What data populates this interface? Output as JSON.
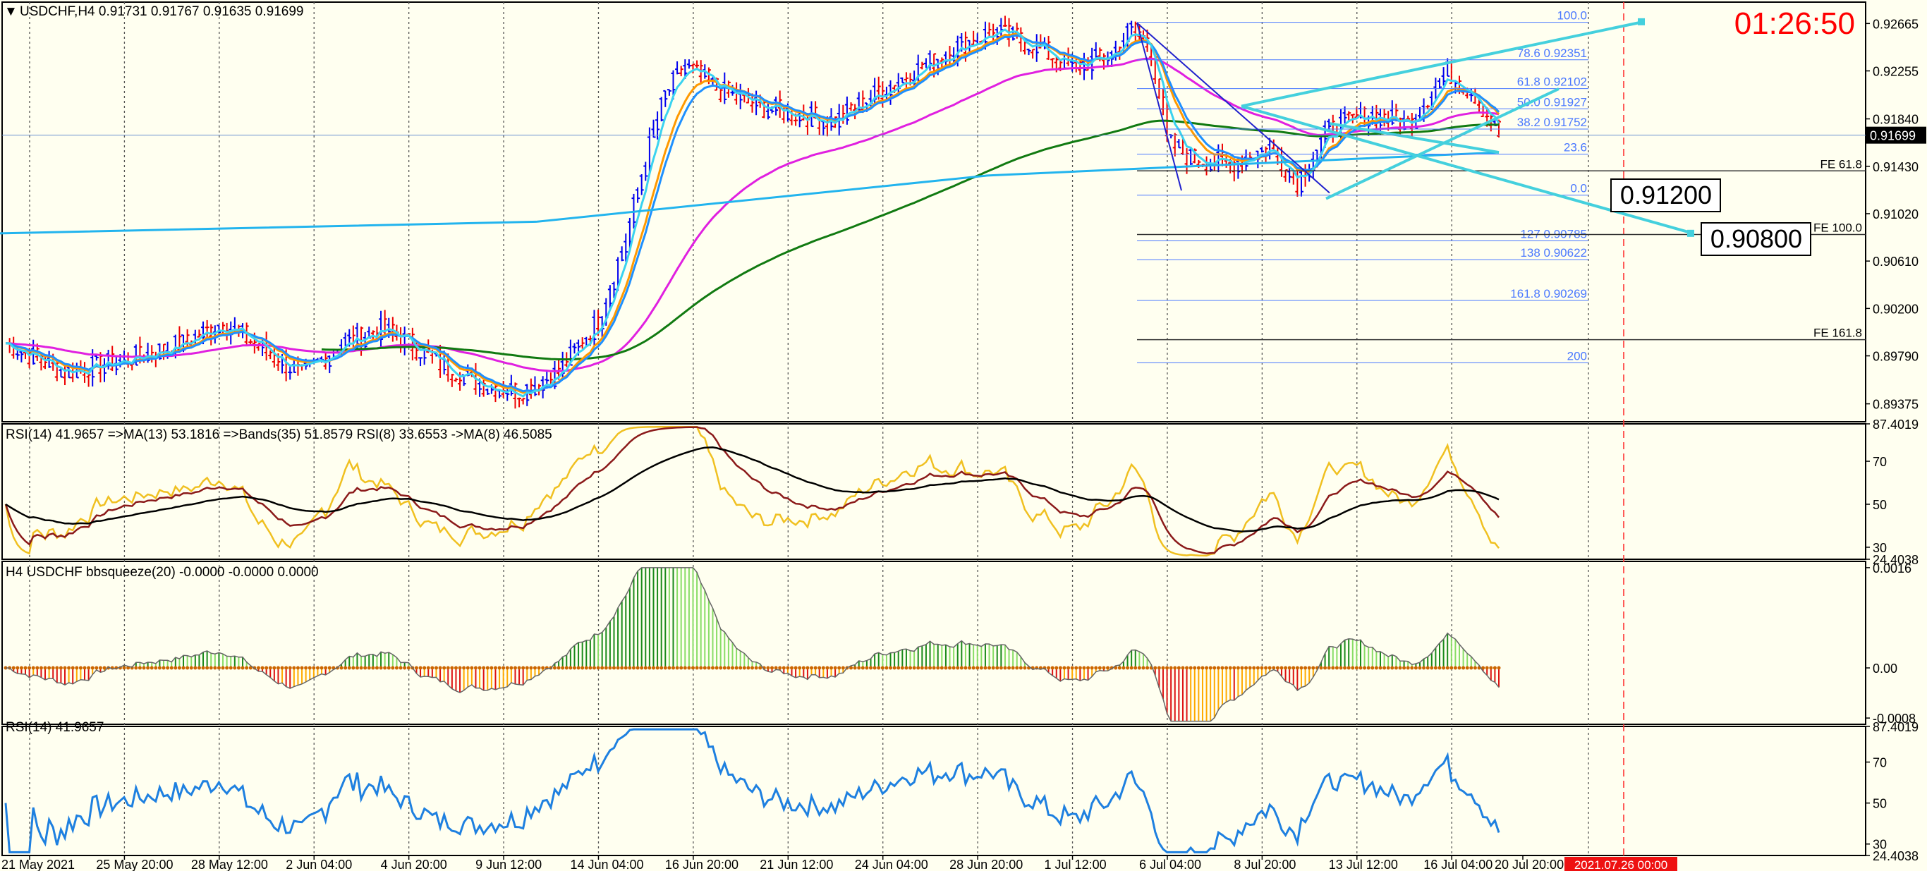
{
  "header": {
    "symbol_line": "USDCHF,H4  0.91731 0.91767 0.91635 0.91699",
    "timer": "01:26:50",
    "current_price": "0.91699"
  },
  "colors": {
    "background": "#fffff0",
    "bull": "#0000ee",
    "bear": "#ee0000",
    "ma_fast": "#3ad3f0",
    "ma_mid": "#ff9900",
    "ma_slow_blue": "#1e90ff",
    "ma_long_green": "#117a11",
    "ma_pink": "#e020e0",
    "ma_cyan_long": "#22b4ee",
    "channel": "#44d0dd",
    "fib": "#4a78ff"
  },
  "chart_data": [
    {
      "type": "candlestick",
      "panel": "price",
      "price_axis": [
        "0.92665",
        "0.92255",
        "0.91840",
        "0.91430",
        "0.91020",
        "0.90610",
        "0.90200",
        "0.89790",
        "0.89375"
      ],
      "price_range": [
        0.8922,
        0.9285
      ],
      "x_labels": [
        "21 May 2021",
        "25 May 20:00",
        "28 May 12:00",
        "2 Jun 04:00",
        "4 Jun 20:00",
        "9 Jun 12:00",
        "14 Jun 04:00",
        "16 Jun 20:00",
        "21 Jun 12:00",
        "24 Jun 04:00",
        "28 Jun 20:00",
        "1 Jul 12:00",
        "6 Jul 04:00",
        "8 Jul 20:00",
        "13 Jul 12:00",
        "16 Jul 04:00",
        "20 Jul 20:00"
      ],
      "future_marker_label": "2021.07.26 00:00",
      "close_path": [
        [
          0,
          0.899
        ],
        [
          15,
          0.8965
        ],
        [
          30,
          0.8975
        ],
        [
          45,
          0.899
        ],
        [
          55,
          0.9008
        ],
        [
          65,
          0.8985
        ],
        [
          75,
          0.8962
        ],
        [
          85,
          0.899
        ],
        [
          95,
          0.9002
        ],
        [
          100,
          0.8995
        ],
        [
          110,
          0.8972
        ],
        [
          120,
          0.8955
        ],
        [
          130,
          0.8948
        ],
        [
          140,
          0.8965
        ],
        [
          150,
          0.901
        ],
        [
          157,
          0.908
        ],
        [
          162,
          0.915
        ],
        [
          167,
          0.9205
        ],
        [
          172,
          0.923
        ],
        [
          180,
          0.921
        ],
        [
          190,
          0.9195
        ],
        [
          200,
          0.9188
        ],
        [
          210,
          0.9182
        ],
        [
          220,
          0.9205
        ],
        [
          230,
          0.9225
        ],
        [
          240,
          0.9245
        ],
        [
          250,
          0.926
        ],
        [
          260,
          0.9248
        ],
        [
          270,
          0.9228
        ],
        [
          280,
          0.924
        ],
        [
          285,
          0.9262
        ],
        [
          290,
          0.9245
        ],
        [
          294,
          0.9165
        ],
        [
          300,
          0.915
        ],
        [
          310,
          0.9145
        ],
        [
          320,
          0.916
        ],
        [
          327,
          0.913
        ],
        [
          335,
          0.9175
        ],
        [
          345,
          0.9188
        ],
        [
          355,
          0.918
        ],
        [
          365,
          0.9225
        ],
        [
          372,
          0.9205
        ],
        [
          378,
          0.917
        ]
      ],
      "fib_retracement": [
        {
          "level": "100.0",
          "price": 0.92675
        },
        {
          "level": "78.6",
          "price": 0.92351
        },
        {
          "level": "61.8",
          "price": 0.92102
        },
        {
          "level": "50.0",
          "price": 0.91927
        },
        {
          "level": "38.2",
          "price": 0.91752
        },
        {
          "level": "23.6",
          "price": 0.91535
        },
        {
          "level": "0.0",
          "price": 0.9118
        }
      ],
      "fib_extension": [
        {
          "level": "127",
          "price": 0.90785
        },
        {
          "level": "138",
          "price": 0.90622
        },
        {
          "level": "161.8",
          "price": 0.90269
        },
        {
          "level": "200",
          "price": 0.8973
        }
      ],
      "fe_levels": [
        {
          "label": "FE 61.8",
          "price": 0.9139
        },
        {
          "label": "FE 100.0",
          "price": 0.9084
        },
        {
          "label": "FE 161.8",
          "price": 0.8993
        }
      ],
      "price_boxes": [
        "0.91200",
        "0.90800"
      ]
    },
    {
      "type": "line",
      "panel": "rsi_bands",
      "label": "RSI(14) 41.9657  =>MA(13) 53.1816  =>Bands(35) 51.8579  RSI(8) 33.6553  ->MA(8) 46.5085",
      "y_ticks": [
        "87.4019",
        "70",
        "50",
        "30",
        "24.4038"
      ],
      "ylim": [
        24.4038,
        87.4019
      ]
    },
    {
      "type": "bar",
      "panel": "bbsqueeze",
      "label": "H4 USDCHF bbsqueeze(20) -0.0000 -0.0000 0.0000",
      "y_ticks": [
        "0.0016",
        "0.00",
        "0.00",
        "-0.0008"
      ],
      "ylim": [
        -0.0009,
        0.0017
      ]
    },
    {
      "type": "line",
      "panel": "rsi",
      "label": "RSI(14) 41.9657",
      "y_ticks": [
        "87.4019",
        "70",
        "50",
        "30",
        "24.4038"
      ],
      "ylim": [
        24.4038,
        87.4019
      ]
    }
  ]
}
